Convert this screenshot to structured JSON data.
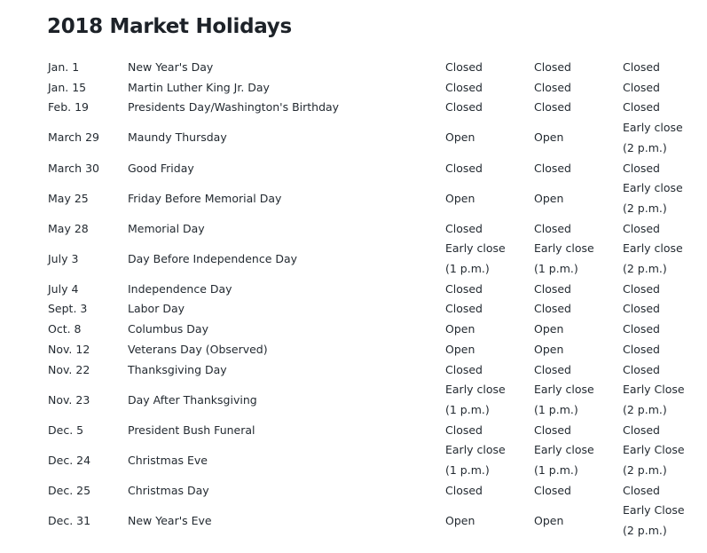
{
  "title": "2018 Market Holidays",
  "rows": [
    {
      "date": "Jan. 1",
      "holiday": "New Year's Day",
      "c1": [
        "Closed"
      ],
      "c2": [
        "Closed"
      ],
      "c3": [
        "Closed"
      ]
    },
    {
      "date": "Jan. 15",
      "holiday": "Martin Luther King Jr. Day",
      "c1": [
        "Closed"
      ],
      "c2": [
        "Closed"
      ],
      "c3": [
        "Closed"
      ]
    },
    {
      "date": "Feb. 19",
      "holiday": "Presidents Day/Washington's Birthday",
      "c1": [
        "Closed"
      ],
      "c2": [
        "Closed"
      ],
      "c3": [
        "Closed"
      ]
    },
    {
      "date": "March 29",
      "holiday": "Maundy Thursday",
      "c1": [
        "Open"
      ],
      "c2": [
        "Open"
      ],
      "c3": [
        "Early close",
        "(2 p.m.)"
      ]
    },
    {
      "date": "March 30",
      "holiday": "Good Friday",
      "c1": [
        "Closed"
      ],
      "c2": [
        "Closed"
      ],
      "c3": [
        "Closed"
      ]
    },
    {
      "date": "May 25",
      "holiday": "Friday Before Memorial Day",
      "c1": [
        "Open"
      ],
      "c2": [
        "Open"
      ],
      "c3": [
        "Early close",
        "(2 p.m.)"
      ]
    },
    {
      "date": "May 28",
      "holiday": "Memorial Day",
      "c1": [
        "Closed"
      ],
      "c2": [
        "Closed"
      ],
      "c3": [
        "Closed"
      ]
    },
    {
      "date": "July 3",
      "holiday": "Day Before Independence Day",
      "c1": [
        "Early close",
        "(1 p.m.)"
      ],
      "c2": [
        "Early close",
        "(1 p.m.)"
      ],
      "c3": [
        "Early close",
        "(2 p.m.)"
      ]
    },
    {
      "date": "July 4",
      "holiday": "Independence Day",
      "c1": [
        "Closed"
      ],
      "c2": [
        "Closed"
      ],
      "c3": [
        "Closed"
      ]
    },
    {
      "date": "Sept. 3",
      "holiday": "Labor Day",
      "c1": [
        "Closed"
      ],
      "c2": [
        "Closed"
      ],
      "c3": [
        "Closed"
      ]
    },
    {
      "date": "Oct. 8",
      "holiday": "Columbus Day",
      "c1": [
        "Open"
      ],
      "c2": [
        "Open"
      ],
      "c3": [
        "Closed"
      ]
    },
    {
      "date": "Nov. 12",
      "holiday": "Veterans Day (Observed)",
      "c1": [
        "Open"
      ],
      "c2": [
        "Open"
      ],
      "c3": [
        "Closed"
      ]
    },
    {
      "date": "Nov. 22",
      "holiday": "Thanksgiving Day",
      "c1": [
        "Closed"
      ],
      "c2": [
        "Closed"
      ],
      "c3": [
        "Closed"
      ]
    },
    {
      "date": "Nov. 23",
      "holiday": "Day After Thanksgiving",
      "c1": [
        "Early close",
        "(1 p.m.)"
      ],
      "c2": [
        "Early close",
        "(1 p.m.)"
      ],
      "c3": [
        "Early Close",
        "(2 p.m.)"
      ]
    },
    {
      "date": "Dec. 5",
      "holiday": "President Bush Funeral",
      "c1": [
        "Closed"
      ],
      "c2": [
        "Closed"
      ],
      "c3": [
        "Closed"
      ]
    },
    {
      "date": "Dec. 24",
      "holiday": "Christmas Eve",
      "c1": [
        "Early close",
        "(1 p.m.)"
      ],
      "c2": [
        "Early close",
        "(1 p.m.)"
      ],
      "c3": [
        "Early Close",
        "(2 p.m.)"
      ]
    },
    {
      "date": "Dec. 25",
      "holiday": "Christmas Day",
      "c1": [
        "Closed"
      ],
      "c2": [
        "Closed"
      ],
      "c3": [
        "Closed"
      ]
    },
    {
      "date": "Dec. 31",
      "holiday": "New Year's Eve",
      "c1": [
        "Open"
      ],
      "c2": [
        "Open"
      ],
      "c3": [
        "Early Close",
        "(2 p.m.)"
      ]
    }
  ]
}
